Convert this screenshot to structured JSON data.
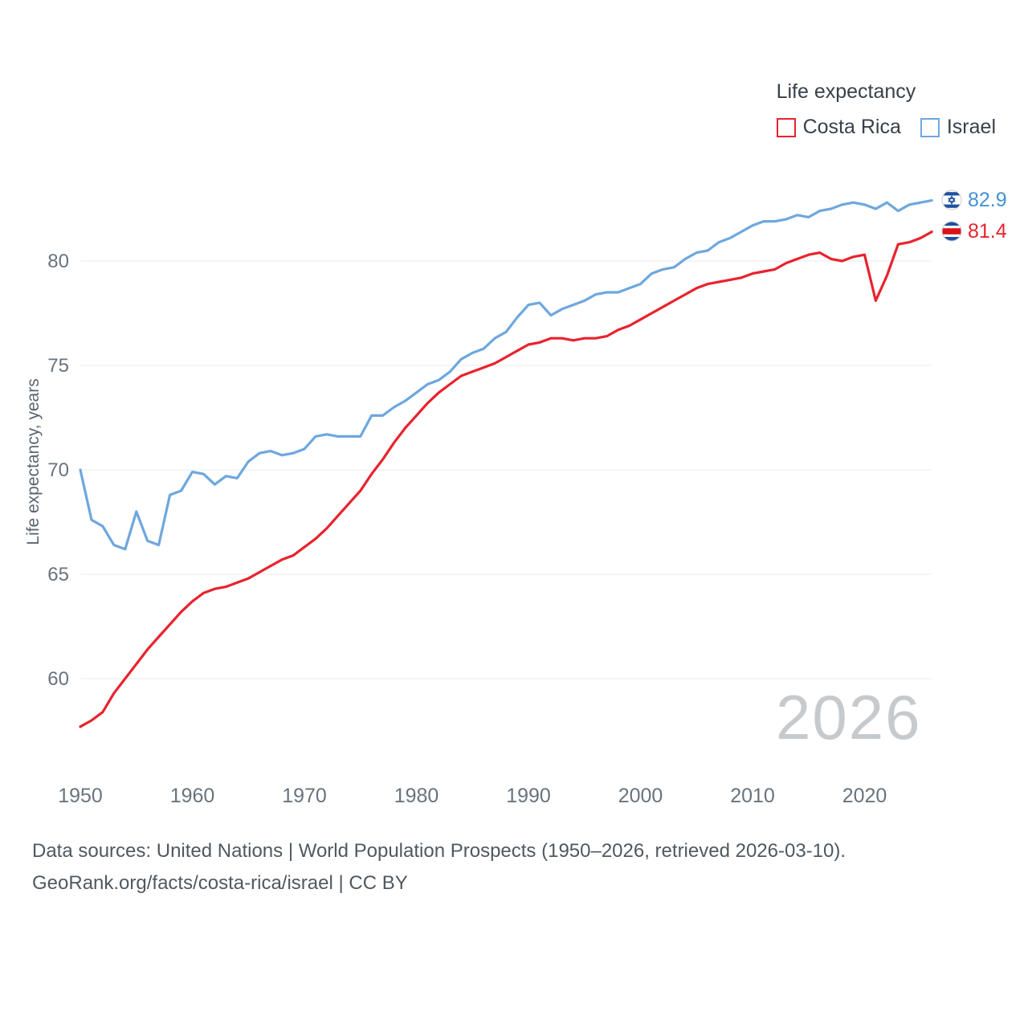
{
  "legend": {
    "title": "Life expectancy",
    "items": [
      {
        "label": "Costa Rica",
        "color": "#e8232d"
      },
      {
        "label": "Israel",
        "color": "#6ea7de"
      }
    ]
  },
  "axes": {
    "y_label": "Life expectancy, years",
    "y_ticks": [
      60,
      65,
      70,
      75,
      80
    ],
    "x_ticks": [
      1950,
      1960,
      1970,
      1980,
      1990,
      2000,
      2010,
      2020
    ]
  },
  "end_labels": [
    {
      "series": "Israel",
      "value": "82.9",
      "color": "#4293d6",
      "flag": "israel-flag-icon"
    },
    {
      "series": "Costa Rica",
      "value": "81.4",
      "color": "#e8232d",
      "flag": "costa-rica-flag-icon"
    }
  ],
  "watermark": "2026",
  "footer": {
    "line1": "Data sources: United Nations | World Population Prospects (1950–2026, retrieved 2026-03-10).",
    "line2": "GeoRank.org/facts/costa-rica/israel | CC BY"
  },
  "chart_data": {
    "type": "line",
    "title": "Life expectancy",
    "xlabel": "",
    "ylabel": "Life expectancy, years",
    "xlim": [
      1950,
      2026
    ],
    "ylim": [
      56,
      84.5
    ],
    "grid": "horizontal",
    "legend_position": "top-right",
    "x": [
      1950,
      1951,
      1952,
      1953,
      1954,
      1955,
      1956,
      1957,
      1958,
      1959,
      1960,
      1961,
      1962,
      1963,
      1964,
      1965,
      1966,
      1967,
      1968,
      1969,
      1970,
      1971,
      1972,
      1973,
      1974,
      1975,
      1976,
      1977,
      1978,
      1979,
      1980,
      1981,
      1982,
      1983,
      1984,
      1985,
      1986,
      1987,
      1988,
      1989,
      1990,
      1991,
      1992,
      1993,
      1994,
      1995,
      1996,
      1997,
      1998,
      1999,
      2000,
      2001,
      2002,
      2003,
      2004,
      2005,
      2006,
      2007,
      2008,
      2009,
      2010,
      2011,
      2012,
      2013,
      2014,
      2015,
      2016,
      2017,
      2018,
      2019,
      2020,
      2021,
      2022,
      2023,
      2024,
      2025,
      2026
    ],
    "series": [
      {
        "name": "Costa Rica",
        "color": "#e8232d",
        "values": [
          57.7,
          58.0,
          58.4,
          59.3,
          60.0,
          60.7,
          61.4,
          62.0,
          62.6,
          63.2,
          63.7,
          64.1,
          64.3,
          64.4,
          64.6,
          64.8,
          65.1,
          65.4,
          65.7,
          65.9,
          66.3,
          66.7,
          67.2,
          67.8,
          68.4,
          69.0,
          69.8,
          70.5,
          71.3,
          72.0,
          72.6,
          73.2,
          73.7,
          74.1,
          74.5,
          74.7,
          74.9,
          75.1,
          75.4,
          75.7,
          76.0,
          76.1,
          76.3,
          76.3,
          76.2,
          76.3,
          76.3,
          76.4,
          76.7,
          76.9,
          77.2,
          77.5,
          77.8,
          78.1,
          78.4,
          78.7,
          78.9,
          79.0,
          79.1,
          79.2,
          79.4,
          79.5,
          79.6,
          79.9,
          80.1,
          80.3,
          80.4,
          80.1,
          80.0,
          80.2,
          80.3,
          78.1,
          79.3,
          80.8,
          80.9,
          81.1,
          81.4
        ]
      },
      {
        "name": "Israel",
        "color": "#6ea7de",
        "values": [
          70.0,
          67.6,
          67.3,
          66.4,
          66.2,
          68.0,
          66.6,
          66.4,
          68.8,
          69.0,
          69.9,
          69.8,
          69.3,
          69.7,
          69.6,
          70.4,
          70.8,
          70.9,
          70.7,
          70.8,
          71.0,
          71.6,
          71.7,
          71.6,
          71.6,
          71.6,
          72.6,
          72.6,
          73.0,
          73.3,
          73.7,
          74.1,
          74.3,
          74.7,
          75.3,
          75.6,
          75.8,
          76.3,
          76.6,
          77.3,
          77.9,
          78.0,
          77.4,
          77.7,
          77.9,
          78.1,
          78.4,
          78.5,
          78.5,
          78.7,
          78.9,
          79.4,
          79.6,
          79.7,
          80.1,
          80.4,
          80.5,
          80.9,
          81.1,
          81.4,
          81.7,
          81.9,
          81.9,
          82.0,
          82.2,
          82.1,
          82.4,
          82.5,
          82.7,
          82.8,
          82.7,
          82.5,
          82.8,
          82.4,
          82.7,
          82.8,
          82.9
        ]
      }
    ]
  }
}
